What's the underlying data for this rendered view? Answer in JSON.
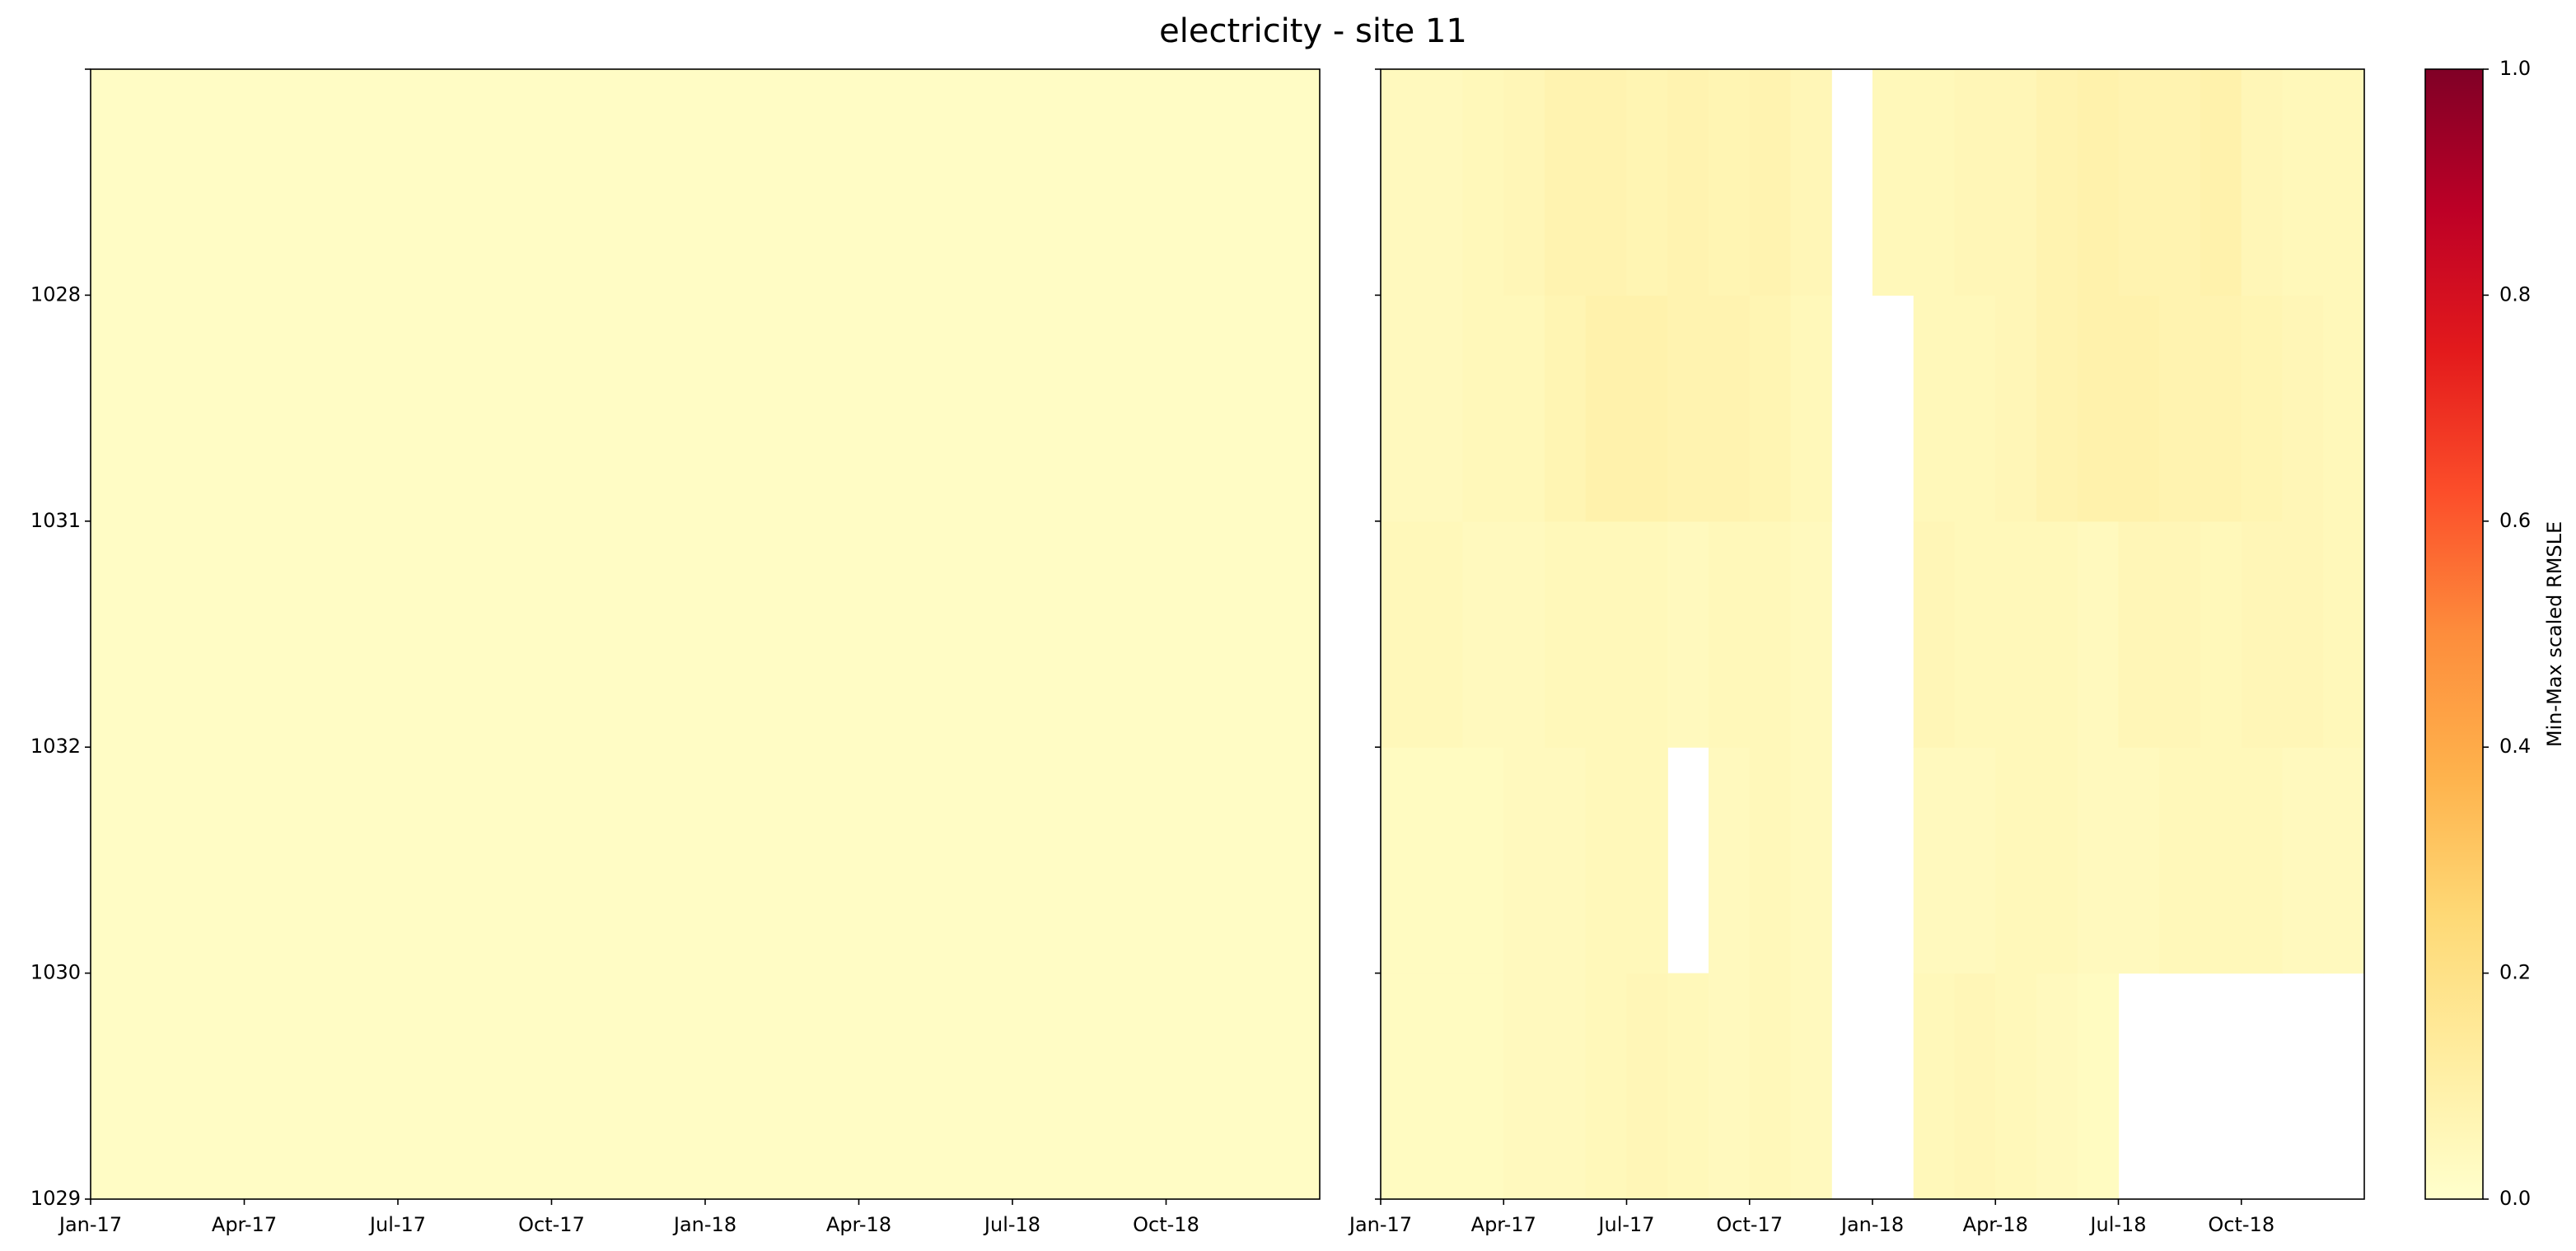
{
  "title": "electricity - site 11",
  "chart_data": [
    {
      "type": "heatmap",
      "x": [
        "2017-01",
        "2017-02",
        "2017-03",
        "2017-04",
        "2017-05",
        "2017-06",
        "2017-07",
        "2017-08",
        "2017-09",
        "2017-10",
        "2017-11",
        "2017-12",
        "2018-01",
        "2018-02",
        "2018-03",
        "2018-04",
        "2018-05",
        "2018-06",
        "2018-07",
        "2018-08",
        "2018-09",
        "2018-10",
        "2018-11",
        "2018-12"
      ],
      "xlim": [
        "2017-01",
        "2019-01"
      ],
      "xticks": [
        {
          "value": "2017-01",
          "label": "Jan-17"
        },
        {
          "value": "2017-04",
          "label": "Apr-17"
        },
        {
          "value": "2017-07",
          "label": "Jul-17"
        },
        {
          "value": "2017-10",
          "label": "Oct-17"
        },
        {
          "value": "2018-01",
          "label": "Jan-18"
        },
        {
          "value": "2018-04",
          "label": "Apr-18"
        },
        {
          "value": "2018-07",
          "label": "Jul-18"
        },
        {
          "value": "2018-10",
          "label": "Oct-18"
        }
      ],
      "ylim": [
        0,
        5
      ],
      "yticks": [
        {
          "value": 0,
          "label": "1029"
        },
        {
          "value": 1,
          "label": "1030"
        },
        {
          "value": 2,
          "label": "1032"
        },
        {
          "value": 3,
          "label": "1031"
        },
        {
          "value": 4,
          "label": "1028"
        },
        {
          "value": 5,
          "label": null
        }
      ],
      "values": [
        [
          0.02,
          0.02,
          0.02,
          0.02,
          0.02,
          0.02,
          0.02,
          0.02,
          0.02,
          0.02,
          0.02,
          0.02,
          0.02,
          0.02,
          0.02,
          0.02,
          0.02,
          0.02,
          0.02,
          0.02,
          0.02,
          0.02,
          0.02,
          0.02
        ],
        [
          0.02,
          0.02,
          0.02,
          0.02,
          0.02,
          0.02,
          0.02,
          0.02,
          0.02,
          0.02,
          0.02,
          0.02,
          0.02,
          0.02,
          0.02,
          0.02,
          0.02,
          0.02,
          0.02,
          0.02,
          0.02,
          0.02,
          0.02,
          0.02
        ],
        [
          0.02,
          0.02,
          0.02,
          0.02,
          0.02,
          0.02,
          0.02,
          0.02,
          0.02,
          0.02,
          0.02,
          0.02,
          0.02,
          0.02,
          0.02,
          0.02,
          0.02,
          0.02,
          0.02,
          0.02,
          0.02,
          0.02,
          0.02,
          0.02
        ],
        [
          0.02,
          0.02,
          0.02,
          0.02,
          0.02,
          0.02,
          0.02,
          0.02,
          0.02,
          0.02,
          0.02,
          0.02,
          0.02,
          0.02,
          0.02,
          0.02,
          0.02,
          0.02,
          0.02,
          0.02,
          0.02,
          0.02,
          0.02,
          0.02
        ],
        [
          0.02,
          0.02,
          0.02,
          0.02,
          0.02,
          0.02,
          0.02,
          0.02,
          0.02,
          0.02,
          0.02,
          0.02,
          0.02,
          0.02,
          0.02,
          0.02,
          0.02,
          0.02,
          0.02,
          0.02,
          0.02,
          0.02,
          0.02,
          0.02
        ]
      ]
    },
    {
      "type": "heatmap",
      "sharey": true,
      "x": [
        "2017-01",
        "2017-02",
        "2017-03",
        "2017-04",
        "2017-05",
        "2017-06",
        "2017-07",
        "2017-08",
        "2017-09",
        "2017-10",
        "2017-11",
        "2017-12",
        "2018-01",
        "2018-02",
        "2018-03",
        "2018-04",
        "2018-05",
        "2018-06",
        "2018-07",
        "2018-08",
        "2018-09",
        "2018-10",
        "2018-11",
        "2018-12"
      ],
      "xlim": [
        "2017-01",
        "2019-01"
      ],
      "xticks": [
        {
          "value": "2017-01",
          "label": "Jan-17"
        },
        {
          "value": "2017-04",
          "label": "Apr-17"
        },
        {
          "value": "2017-07",
          "label": "Jul-17"
        },
        {
          "value": "2017-10",
          "label": "Oct-17"
        },
        {
          "value": "2018-01",
          "label": "Jan-18"
        },
        {
          "value": "2018-04",
          "label": "Apr-18"
        },
        {
          "value": "2018-07",
          "label": "Jul-18"
        },
        {
          "value": "2018-10",
          "label": "Oct-18"
        }
      ],
      "values": [
        [
          0.03,
          0.03,
          0.03,
          0.04,
          0.04,
          0.05,
          0.06,
          0.05,
          0.04,
          0.05,
          0.04,
          null,
          null,
          0.05,
          0.06,
          0.05,
          0.04,
          0.03,
          null,
          null,
          null,
          null,
          null,
          null
        ],
        [
          0.03,
          0.03,
          0.03,
          0.04,
          0.04,
          0.05,
          0.05,
          null,
          0.04,
          0.05,
          0.04,
          null,
          null,
          0.04,
          0.04,
          0.05,
          0.05,
          0.04,
          0.04,
          0.05,
          0.05,
          0.05,
          0.04,
          0.04
        ],
        [
          0.05,
          0.05,
          0.04,
          0.04,
          0.05,
          0.05,
          0.05,
          0.04,
          0.05,
          0.05,
          0.04,
          null,
          null,
          0.06,
          0.05,
          0.05,
          0.05,
          0.04,
          0.06,
          0.06,
          0.05,
          0.06,
          0.06,
          0.05
        ],
        [
          0.04,
          0.04,
          0.05,
          0.05,
          0.07,
          0.09,
          0.09,
          0.08,
          0.08,
          0.07,
          0.05,
          null,
          null,
          0.05,
          0.05,
          0.06,
          0.08,
          0.09,
          0.09,
          0.08,
          0.08,
          0.07,
          0.06,
          0.05
        ],
        [
          0.04,
          0.04,
          0.05,
          0.06,
          0.08,
          0.08,
          0.07,
          0.08,
          0.07,
          0.08,
          0.06,
          null,
          0.05,
          0.05,
          0.06,
          0.06,
          0.08,
          0.09,
          0.08,
          0.08,
          0.09,
          0.06,
          0.05,
          0.05
        ]
      ]
    }
  ],
  "colorbar": {
    "label": "Min-Max scaled RMSLE",
    "clim": [
      0,
      1
    ],
    "colormap": [
      "#ffffcc",
      "#ffeda0",
      "#fed976",
      "#feb24c",
      "#fd8d3c",
      "#fc4e2a",
      "#e31a1c",
      "#bd0026",
      "#800026"
    ],
    "ticks": [
      {
        "value": 0,
        "label": "0.0"
      },
      {
        "value": 0.2,
        "label": "0.2"
      },
      {
        "value": 0.4,
        "label": "0.4"
      },
      {
        "value": 0.6,
        "label": "0.6"
      },
      {
        "value": 0.8,
        "label": "0.8"
      },
      {
        "value": 1,
        "label": "1.0"
      }
    ]
  }
}
